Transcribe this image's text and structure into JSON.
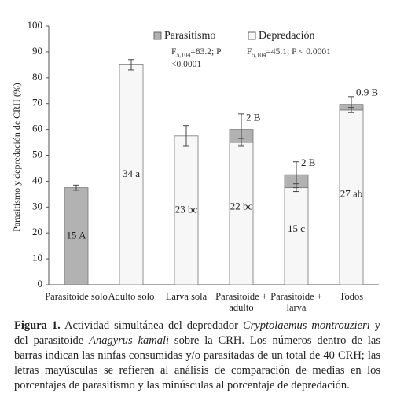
{
  "chart_data": {
    "type": "stacked_bar",
    "y_label": "Parasitismo y depredación de CRH (%)",
    "categories": [
      "Parasitoide solo",
      "Adulto solo",
      "Larva sola",
      "Parasitoide + adulto",
      "Parasitoide + larva",
      "Todos"
    ],
    "series": [
      {
        "name": "Parasitismo",
        "color": "#b2b2b2",
        "values": [
          37.5,
          0,
          0,
          5,
          5,
          2.2
        ],
        "errors": [
          1,
          null,
          null,
          6,
          5,
          3
        ]
      },
      {
        "name": "Depredación",
        "color": "#f7f7f7",
        "values": [
          0,
          85,
          57.5,
          55,
          37.5,
          67.5
        ],
        "errors": [
          null,
          2,
          4,
          1.5,
          1.5,
          1
        ]
      }
    ],
    "bar_labels": [
      "15 A",
      "34 a",
      "23 bc",
      "22 bc",
      "15 c",
      "27 ab"
    ],
    "top_labels": [
      null,
      null,
      null,
      "2 B",
      "2 B",
      "0.9 B"
    ],
    "annotations": [
      {
        "f": "F",
        "sub": "5,104",
        "text": "=83.2; P <0.0001"
      },
      {
        "f": "F",
        "sub": "5,104",
        "text": "=45.1; P < 0.0001"
      }
    ],
    "ylim": [
      0,
      100
    ],
    "yticks": [
      0,
      10,
      20,
      30,
      40,
      50,
      60,
      70,
      80,
      90,
      100
    ],
    "grid": false,
    "legend": "top"
  },
  "caption": {
    "label": "Figura 1.",
    "segments": [
      " Actividad simultánea del depredador ",
      "Cryptolaemus montrouzieri",
      " y del parasitoide ",
      "Anagyrus kamali",
      " sobre la CRH. Los números dentro de las barras indican las ninfas consumidas y/o parasitadas de un total de 40 CRH; las letras mayúsculas se refieren al análisis de comparación de medias en los porcentajes de parasitismo y las minúsculas al porcentaje de depredación."
    ]
  }
}
